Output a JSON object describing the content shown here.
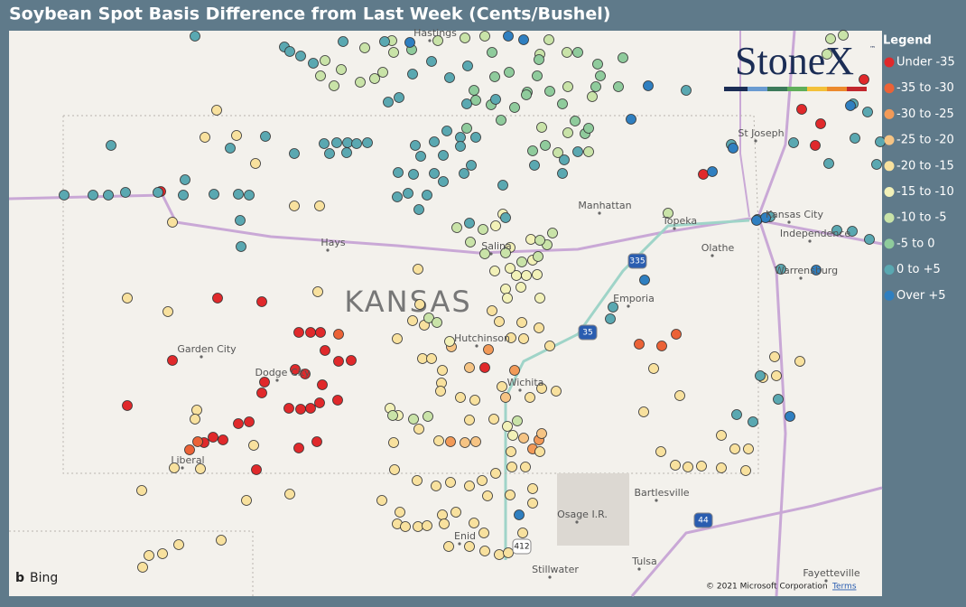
{
  "title": "Soybean Spot Basis Difference from Last Week (Cents/Bushel)",
  "legend": {
    "title": "Legend",
    "items": [
      {
        "label": "Under -35",
        "color": "#e0292b"
      },
      {
        "label": "-35 to -30",
        "color": "#eb6236"
      },
      {
        "label": "-30 to -25",
        "color": "#f29a58"
      },
      {
        "label": "-25 to -20",
        "color": "#f6c484"
      },
      {
        "label": "-20 to -15",
        "color": "#f8e19e"
      },
      {
        "label": "-15 to -10",
        "color": "#f2f1b8"
      },
      {
        "label": "-10 to -5",
        "color": "#c9e3a8"
      },
      {
        "label": "-5 to 0",
        "color": "#8fcb9c"
      },
      {
        "label": "0 to +5",
        "color": "#5aa8b1"
      },
      {
        "label": "Over +5",
        "color": "#2f7fc0"
      }
    ]
  },
  "logo": {
    "name": "StoneX",
    "mark": "™"
  },
  "map": {
    "state_label": "KANSAS",
    "places": [
      "Hastings",
      "St Joseph",
      "Manhattan",
      "Topeka",
      "Kansas City",
      "Independence",
      "Hays",
      "Salina",
      "Olathe",
      "Warrensburg",
      "Emporia",
      "Garden City",
      "Hutchinson",
      "Dodge City",
      "Wichita",
      "Liberal",
      "Bartlesville",
      "Osage I.R.",
      "Enid",
      "Tulsa",
      "Stillwater",
      "Fayetteville"
    ],
    "highways": [
      "335",
      "35",
      "44",
      "412"
    ],
    "attribution": {
      "provider": "Bing",
      "copyright": "© 2021 Microsoft Corporation",
      "terms": "Terms"
    }
  }
}
